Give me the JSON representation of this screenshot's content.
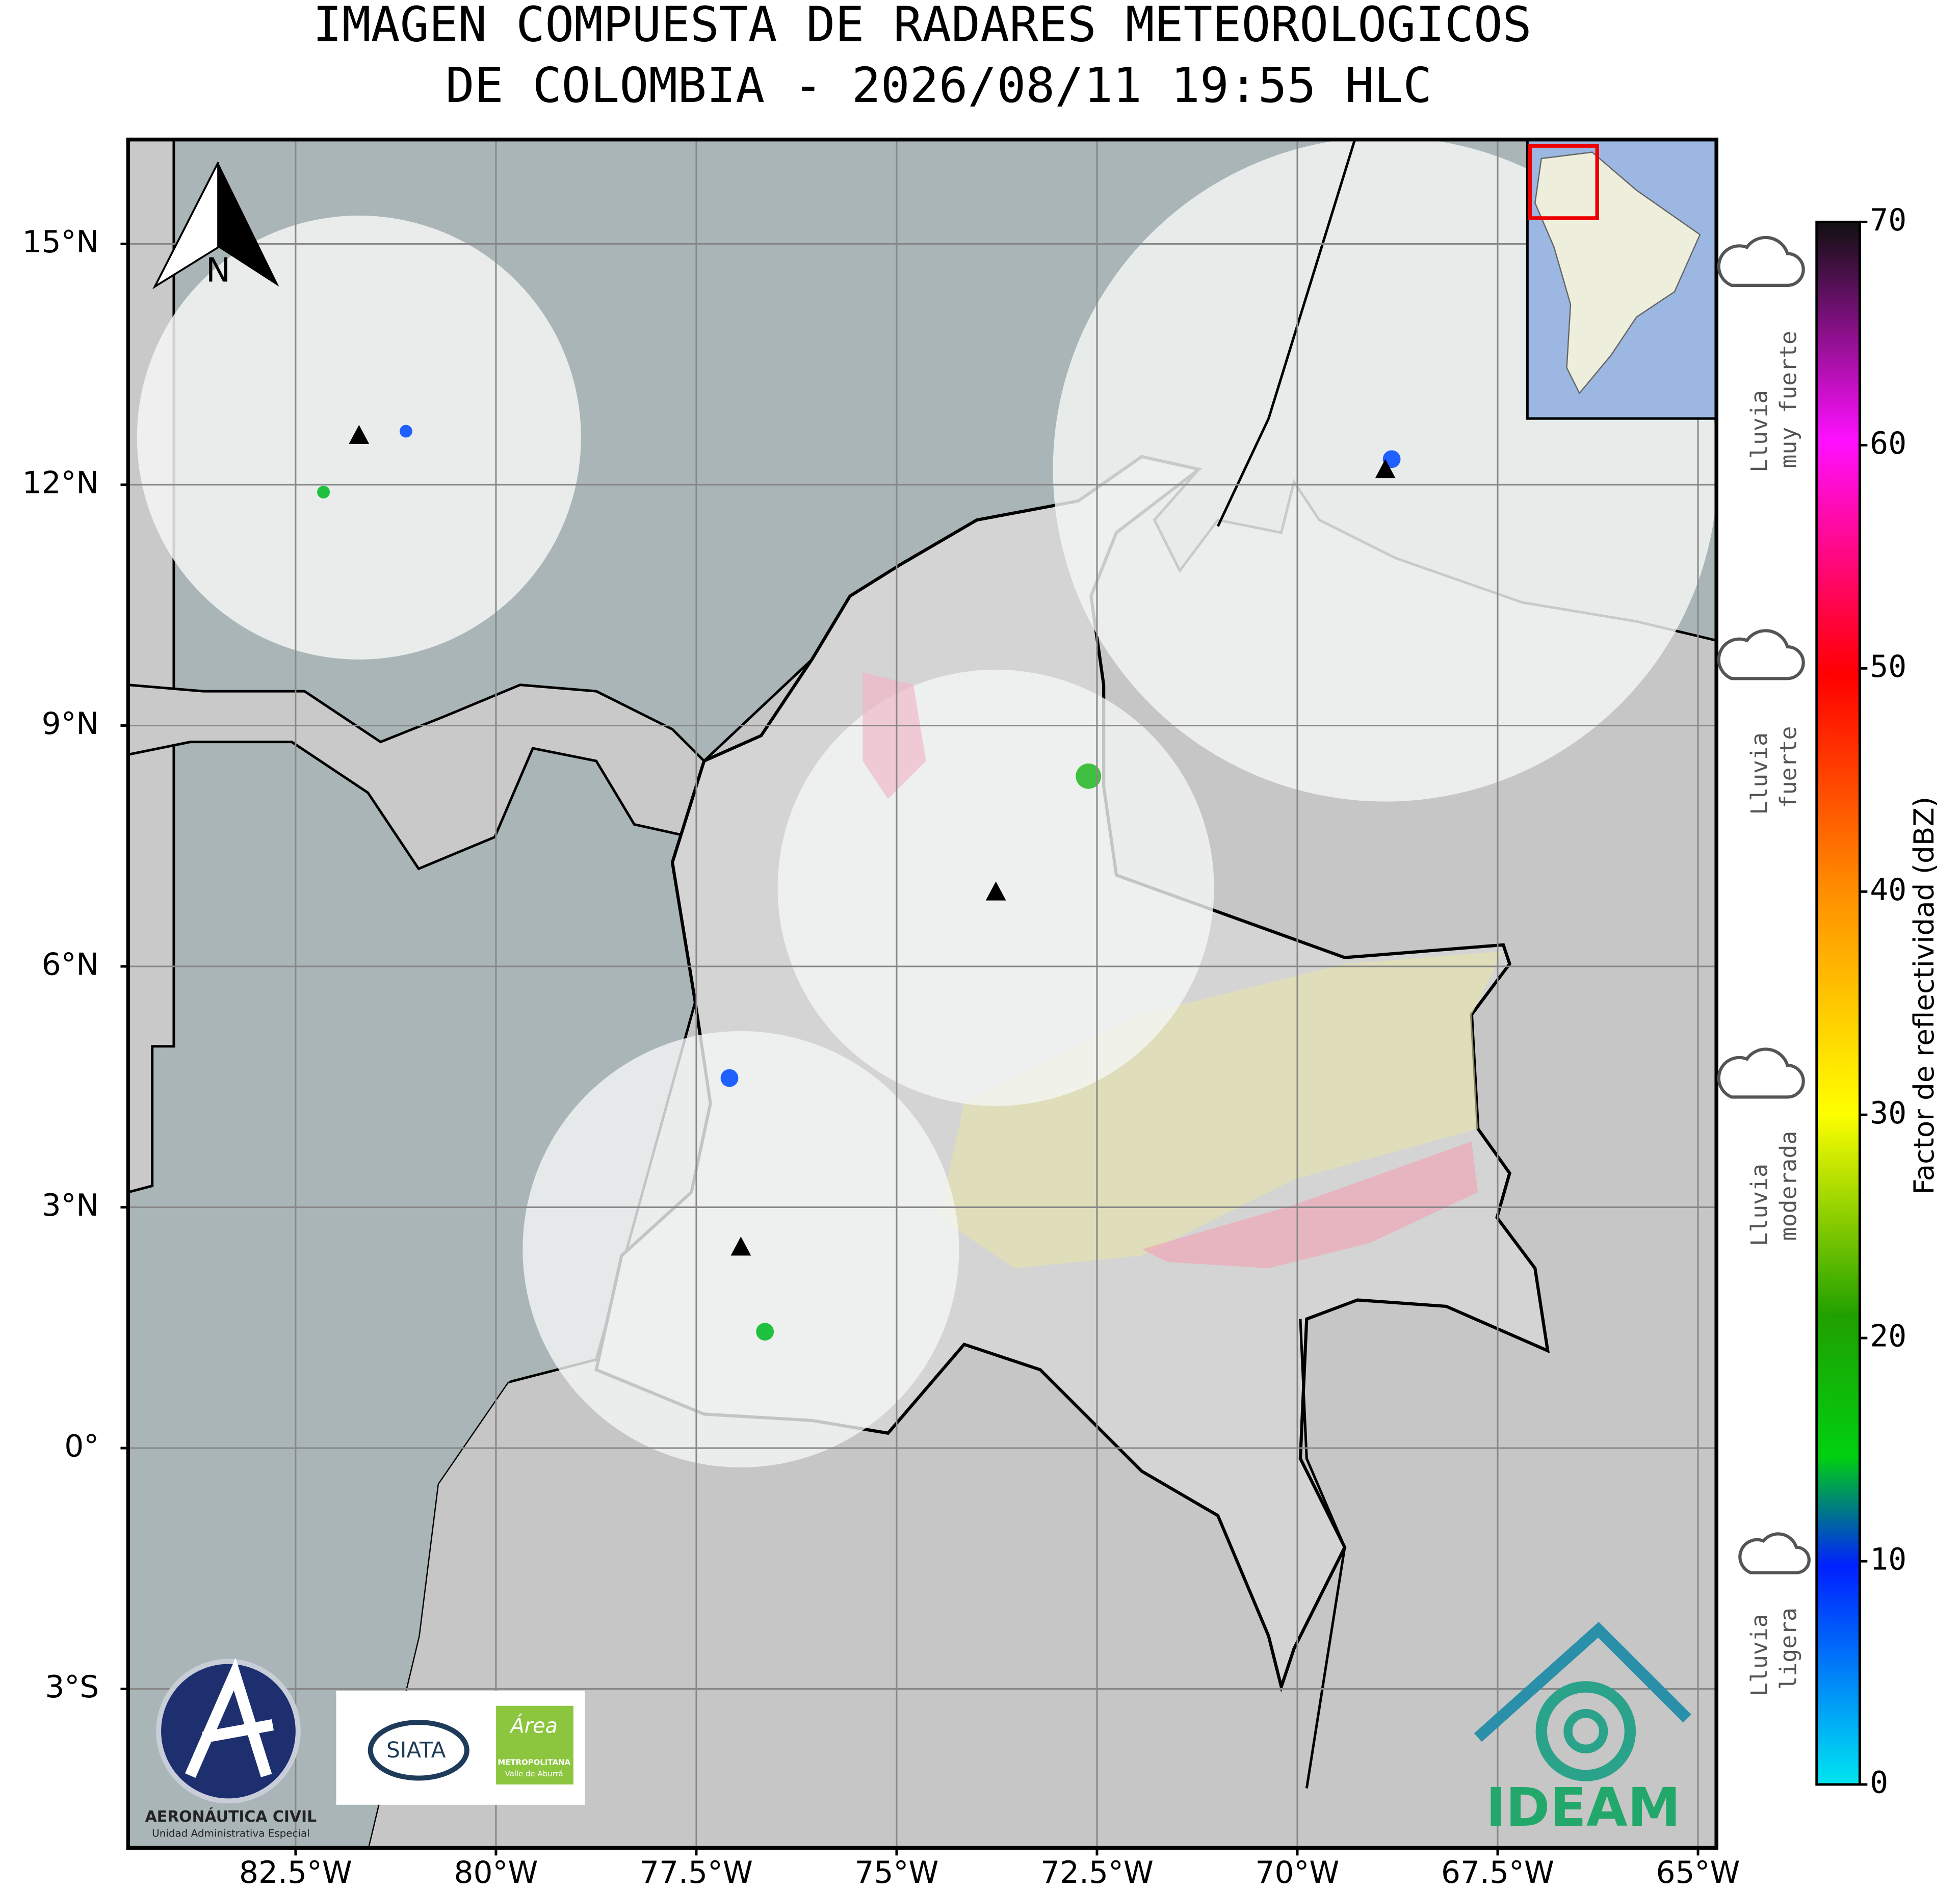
{
  "title_lines": [
    "IMAGEN COMPUESTA DE RADARES METEOROLOGICOS",
    "DE COLOMBIA - 2026/08/11 19:55 HLC"
  ],
  "map": {
    "xlim": [
      -84.59,
      -64.77
    ],
    "ylim": [
      16.3,
      -4.98
    ],
    "xticks": [
      {
        "value": -82.5,
        "label": "82.5°W"
      },
      {
        "value": -80,
        "label": "80°W"
      },
      {
        "value": -77.5,
        "label": "77.5°W"
      },
      {
        "value": -75,
        "label": "75°W"
      },
      {
        "value": -72.5,
        "label": "72.5°W"
      },
      {
        "value": -70,
        "label": "70°W"
      },
      {
        "value": -67.5,
        "label": "67.5°W"
      },
      {
        "value": -65,
        "label": "65°W"
      }
    ],
    "yticks": [
      {
        "value": 15,
        "label": "15°N"
      },
      {
        "value": 12,
        "label": "12°N"
      },
      {
        "value": 9,
        "label": "9°N"
      },
      {
        "value": 6,
        "label": "6°N"
      },
      {
        "value": 3,
        "label": "3°N"
      },
      {
        "value": 0,
        "label": "0°"
      },
      {
        "value": -3,
        "label": "3°S"
      }
    ],
    "north_label": "N"
  },
  "colorbar": {
    "label": "Factor de reflectividad (dBZ)",
    "lim": [
      0,
      70
    ],
    "ticks": [
      0,
      10,
      20,
      30,
      40,
      50,
      60,
      70
    ]
  },
  "rain_legend": [
    [
      "Lluvia",
      "muy fuerte"
    ],
    [
      "Lluvia",
      "fuerte"
    ],
    [
      "Lluvia",
      "moderada"
    ],
    [
      "Lluvia",
      "ligera"
    ]
  ],
  "logos": {
    "aerocivil": [
      "AERONÁUTICA CIVIL",
      "Unidad Administrativa Especial"
    ],
    "siata": "SIATA",
    "area": [
      "Área",
      "METROPOLITANA",
      "Valle de Aburrá"
    ],
    "ideam": "IDEAM"
  }
}
